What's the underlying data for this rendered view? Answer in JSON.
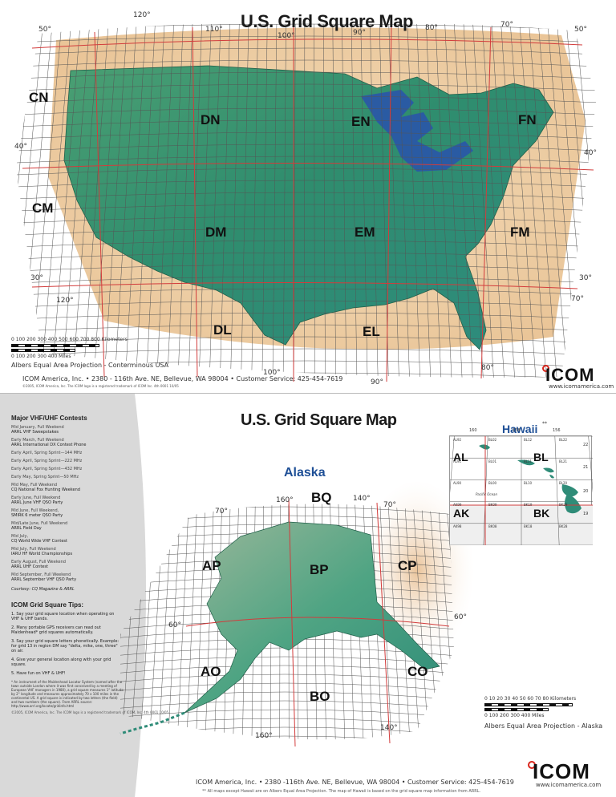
{
  "top_map": {
    "title": "U.S. Grid Square Map",
    "longitude_labels": [
      "120°",
      "110°",
      "100°",
      "90°",
      "80°",
      "70°",
      "120°",
      "100°",
      "90°",
      "80°",
      "70°"
    ],
    "latitude_labels": [
      "50°",
      "50°",
      "40°",
      "40°",
      "30°",
      "30°"
    ],
    "field_labels": [
      "CN",
      "DN",
      "EN",
      "FN",
      "CM",
      "DM",
      "EM",
      "FM",
      "DL",
      "EL"
    ],
    "scale_km": "0   100   200   300   400   500   600   700   800   Kilometers",
    "scale_miles": "0     100    200    300     400   Miles",
    "projection_caption": "Albers Equal Area Projection - Conterminous USA",
    "footer_line": "ICOM America, Inc.  •  2380 - 116th Ave. NE, Bellevue, WA  98004  •  Customer Service: 425-454-7619",
    "fine_print": "©2005, ICOM America, Inc. The ICOM logo is a registered trademark of ICOM Inc.   4th 0001 10/05",
    "logo_text": "ICOM",
    "logo_url": "www.icomamerica.com"
  },
  "sidebar": {
    "contests_heading": "Major VHF/UHF Contests",
    "contests": [
      {
        "when": "Mid January, Full Weekend",
        "name": "ARRL VHF Sweepstakes"
      },
      {
        "when": "Early March, Full Weekend",
        "name": "ARRL International DX Contest Phone"
      },
      {
        "when": "Early April, Spring Sprint—144 MHz",
        "name": ""
      },
      {
        "when": "Early April, Spring Sprint—222 MHz",
        "name": ""
      },
      {
        "when": "Early April, Spring Sprint—432 MHz",
        "name": ""
      },
      {
        "when": "Early May, Spring Sprint—50 MHz",
        "name": ""
      },
      {
        "when": "Mid May, Full Weekend",
        "name": "CQ National Fox Hunting Weekend"
      },
      {
        "when": "Early June, Full Weekend",
        "name": "ARRL June VHF QSO Party"
      },
      {
        "when": "Mid June, Full Weekend,",
        "name": "SMIRK 6 meter QSO Party"
      },
      {
        "when": "Mid/Late June, Full Weekend",
        "name": "ARRL Field Day"
      },
      {
        "when": "Mid July,",
        "name": "CQ World Wide VHF Contest"
      },
      {
        "when": "Mid July, Full Weekend",
        "name": "IARU HF World Championships"
      },
      {
        "when": "Early August, Full Weekend",
        "name": "ARRL UHF Contest"
      },
      {
        "when": "Mid September, Full Weekend",
        "name": "ARRL September VHF QSO Party"
      }
    ],
    "courtesy": "Courtesy: CQ Magazine & ARRL",
    "tips_heading": "ICOM Grid Square Tips:",
    "tips": [
      "1. Say your grid square location when operating on VHF & UHF bands.",
      "2. Many portable GPS receivers can read out Maidenhead* grid squares automatically.",
      "3. Say your grid square letters phonetically. Example: for grid 13 in region DM say \"delta, mike, one, three\" on air.",
      "4. Give your general location along with your grid square.",
      "5. Have fun on VHF & UHF!"
    ],
    "footnote": "* An instrument of the Maidenhead Locator System (named after the town outside London where it was first conceived by a meeting of European VHF managers in 1980), a grid square measures 1° latitude by 2° longitude and measures approximately 70 x 100 miles in the continental US. A grid square is indicated by two letters (the field) and two numbers (the square).  From ARRL source: http://www.arrl.org/locate/gridinfo.html",
    "fine_print": "©2005, ICOM America, Inc. The ICOM logo is a registered trademark of ICOM, Inc.  4th 0001 10/05"
  },
  "bottom_map": {
    "title": "U.S. Grid Square Map",
    "alaska_title": "Alaska",
    "alaska_longitudes": [
      "160°",
      "140°",
      "160°",
      "140°"
    ],
    "alaska_latitudes": [
      "70°",
      "70°",
      "60°",
      "60°"
    ],
    "alaska_fields": [
      "BQ",
      "AP",
      "BP",
      "CP",
      "AO",
      "BO",
      "CO"
    ],
    "hawaii_title": "Hawaii",
    "hawaii_note": "**",
    "hawaii_longitudes": [
      "160",
      "158",
      "156"
    ],
    "hawaii_latitudes": [
      "22",
      "21",
      "20",
      "19"
    ],
    "hawaii_fields": [
      "AL",
      "BL",
      "AK",
      "BK"
    ],
    "hawaii_squares": [
      "AL92",
      "BL02",
      "BL12",
      "BL22",
      "AL91",
      "BL01",
      "BL11",
      "BL21",
      "AL90",
      "BL00",
      "BL10",
      "BL20",
      "AK99",
      "BK09",
      "BK19",
      "BK29",
      "AK98",
      "BK08",
      "BK18",
      "BK28"
    ],
    "pacific_label": "Pacific Ocean",
    "scale_km": "0   10   20   30   40   50   60   70   80   Kilometers",
    "scale_miles": "0     100    200    300     400   Miles",
    "projection_caption": "Albers Equal Area Projection - Alaska",
    "footer_line": "ICOM America, Inc.  •  2380 -116th Ave. NE, Bellevue, WA 98004  •  Customer Service: 425-454-7619",
    "footnote": "** All maps except Hawaii are on Albers Equal Area Projection. The map of Hawaii is based on the grid square map information from ARRL.",
    "logo_text": "ICOM",
    "logo_url": "www.icomamerica.com"
  },
  "colors": {
    "ocean": "#ffffff",
    "land_green": "#3f9a79",
    "land_deep": "#2a7d63",
    "land_tan": "#e8c79a",
    "border_red": "#d23c3c",
    "lake_blue": "#2a55a8",
    "title_blue": "#1e4f96",
    "icom_red": "#d9261c"
  }
}
